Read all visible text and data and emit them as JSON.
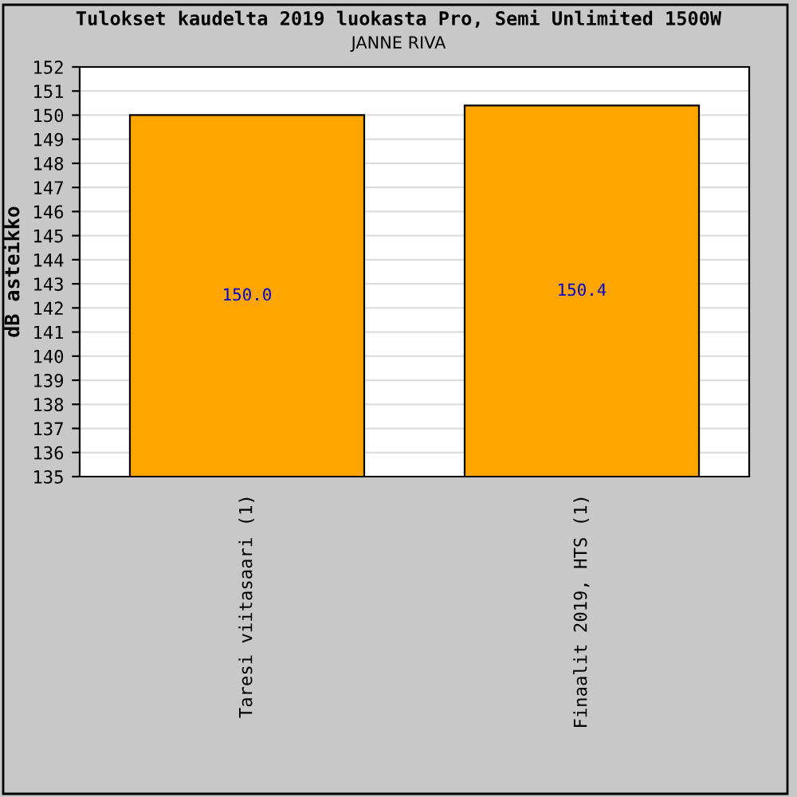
{
  "chart_data": {
    "type": "bar",
    "title": "Tulokset kaudelta 2019 luokasta Pro, Semi Unlimited 1500W",
    "subtitle": "JANNE RIVA",
    "ylabel": "dB asteikko",
    "categories": [
      "Taresi viitasaari (1)",
      "Finaalit 2019, HTS (1)"
    ],
    "values": [
      150.0,
      150.4
    ],
    "value_labels": [
      "150.0",
      "150.4"
    ],
    "color": "#ffa500",
    "ylim": [
      135,
      152
    ],
    "yticks": [
      135,
      136,
      137,
      138,
      139,
      140,
      141,
      142,
      143,
      144,
      145,
      146,
      147,
      148,
      149,
      150,
      151,
      152
    ],
    "grid": "y"
  }
}
